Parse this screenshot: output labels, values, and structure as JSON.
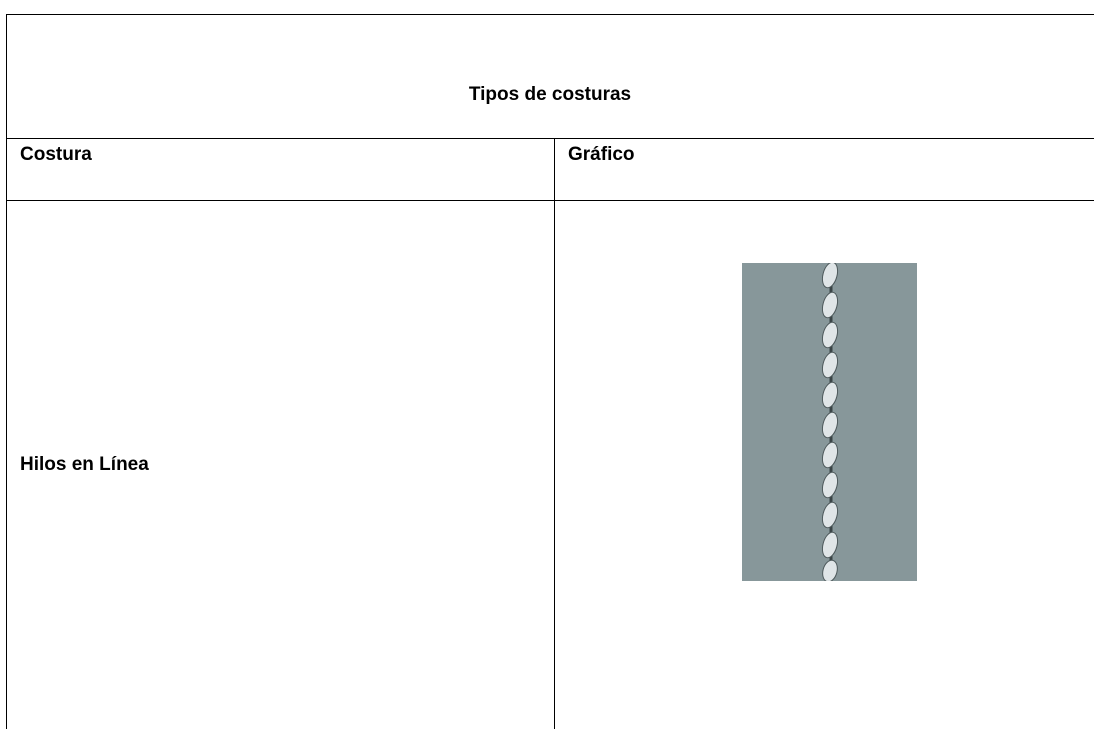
{
  "table": {
    "title": "Tipos de costuras",
    "headers": [
      "Costura",
      "Gráfico"
    ],
    "rows": [
      [
        "Hilos en Línea"
      ]
    ]
  }
}
